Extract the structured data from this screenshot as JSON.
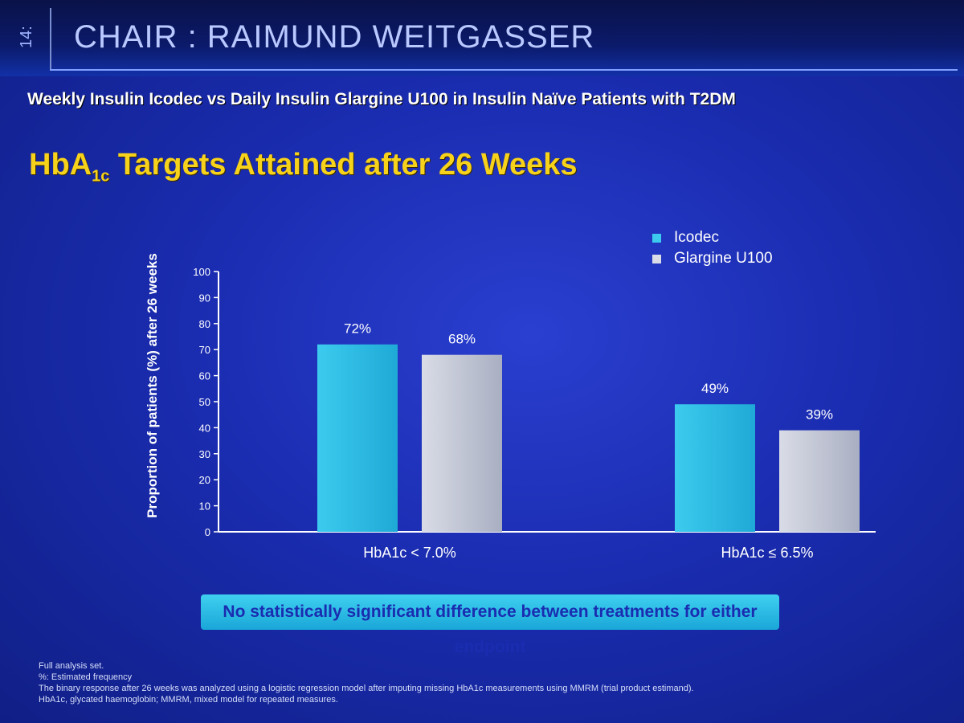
{
  "header": {
    "side_text": "14:",
    "chair": "CHAIR : RAIMUND WEITGASSER"
  },
  "slide": {
    "subtitle": "Weekly Insulin Icodec vs Daily Insulin Glargine U100 in Insulin Naïve Patients with T2DM",
    "title_main": "HbA",
    "title_sub": "1c",
    "title_rest": " Targets Attained after 26 Weeks",
    "significance_note": "No statistically significant difference between treatments for either endpoint",
    "footnotes": [
      "Full analysis set.",
      "%: Estimated frequency",
      "The binary response after 26 weeks was analyzed using a logistic regression model after imputing missing HbA1c measurements using MMRM (trial product estimand).",
      "HbA1c, glycated haemoglobin; MMRM, mixed model for repeated measures."
    ]
  },
  "colors": {
    "icodec": "#3ccbee",
    "glargine": "#d9dce6",
    "title": "#f7d21a"
  },
  "chart_data": {
    "type": "bar",
    "categories": [
      "HbA1c < 7.0%",
      "HbA1c ≤ 6.5%"
    ],
    "series": [
      {
        "name": "Icodec",
        "values": [
          72,
          49
        ],
        "labels": [
          "72%",
          "49%"
        ]
      },
      {
        "name": "Glargine U100",
        "values": [
          68,
          39
        ],
        "labels": [
          "68%",
          "39%"
        ]
      }
    ],
    "ylabel": "Proportion of patients (%) after 26 weeks",
    "ylim": [
      0,
      100
    ],
    "yticks": [
      0,
      10,
      20,
      30,
      40,
      50,
      60,
      70,
      80,
      90,
      100
    ],
    "legend": "top-right",
    "grid": false
  }
}
